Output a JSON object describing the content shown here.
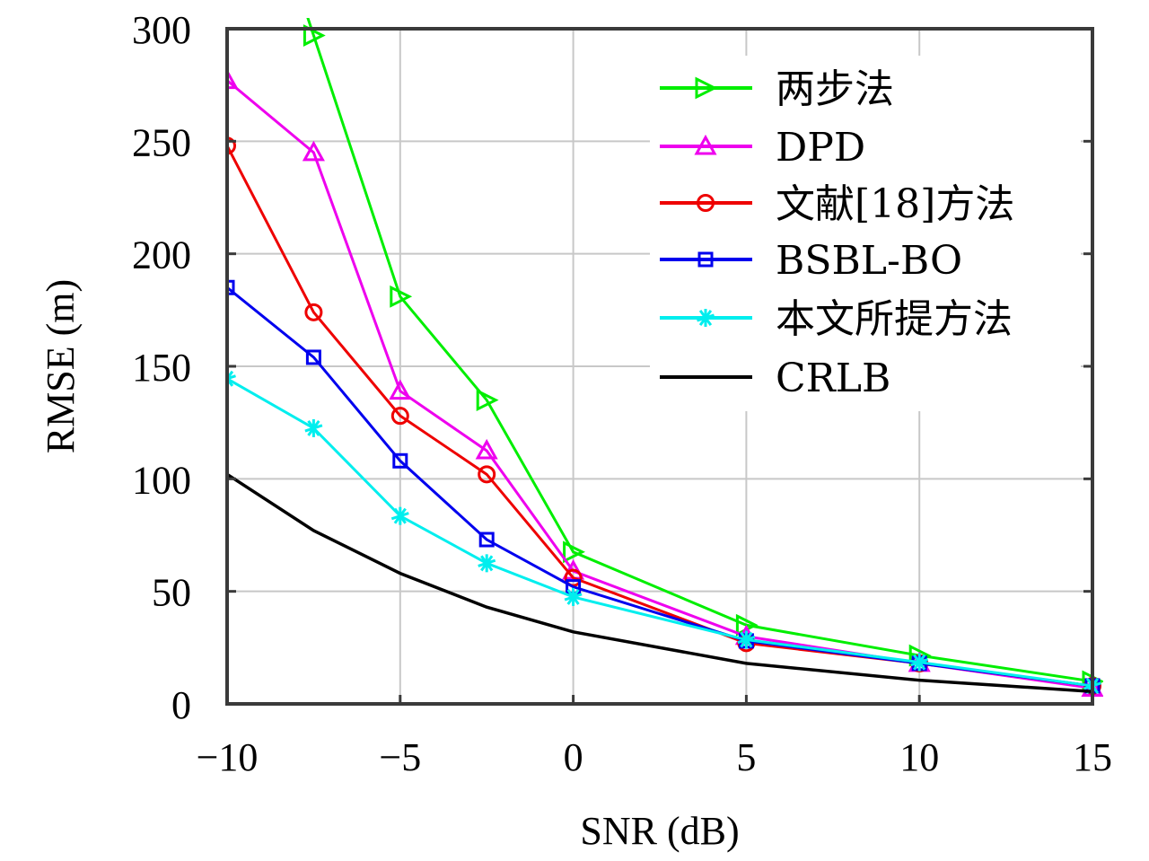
{
  "chart_data": {
    "type": "line",
    "title": "",
    "xlabel": "SNR (dB)",
    "ylabel": "RMSE (m)",
    "xlim": [
      -10,
      15
    ],
    "ylim": [
      0,
      300
    ],
    "xticks": [
      -10,
      -5,
      0,
      5,
      10,
      15
    ],
    "xtick_labels": [
      "−10",
      "−5",
      "0",
      "5",
      "10",
      "15"
    ],
    "yticks": [
      0,
      50,
      100,
      150,
      200,
      250,
      300
    ],
    "ytick_labels": [
      "0",
      "50",
      "100",
      "150",
      "200",
      "250",
      "300"
    ],
    "grid": true,
    "legend_position": "top-right",
    "x": [
      -10,
      -7.5,
      -5,
      -2.5,
      0,
      5,
      10,
      15
    ],
    "series": [
      {
        "name": "两步法",
        "color": "#00ee00",
        "marker": "triangle-right",
        "values": [
          null,
          297,
          181,
          135,
          67.5,
          35,
          21.5,
          10
        ]
      },
      {
        "name": "DPD",
        "color": "#ee00ee",
        "marker": "triangle-up",
        "values": [
          277,
          245,
          139,
          112.5,
          59,
          30,
          18,
          7
        ]
      },
      {
        "name": "文献[18]方法",
        "color": "#ee0000",
        "marker": "circle",
        "values": [
          248,
          174,
          128,
          102,
          56,
          27,
          18,
          8
        ]
      },
      {
        "name": "BSBL-BO",
        "color": "#0000ee",
        "marker": "square",
        "values": [
          185,
          154,
          108,
          73,
          52,
          28,
          18,
          8
        ]
      },
      {
        "name": "本文所提方法",
        "color": "#00eeee",
        "marker": "asterisk",
        "values": [
          144.5,
          122.5,
          83.5,
          62.5,
          47.5,
          28.5,
          18.5,
          8
        ]
      },
      {
        "name": "CRLB",
        "color": "#000000",
        "marker": "none",
        "values": [
          102,
          77,
          58,
          43,
          32,
          18,
          10.5,
          5.5
        ]
      }
    ]
  }
}
